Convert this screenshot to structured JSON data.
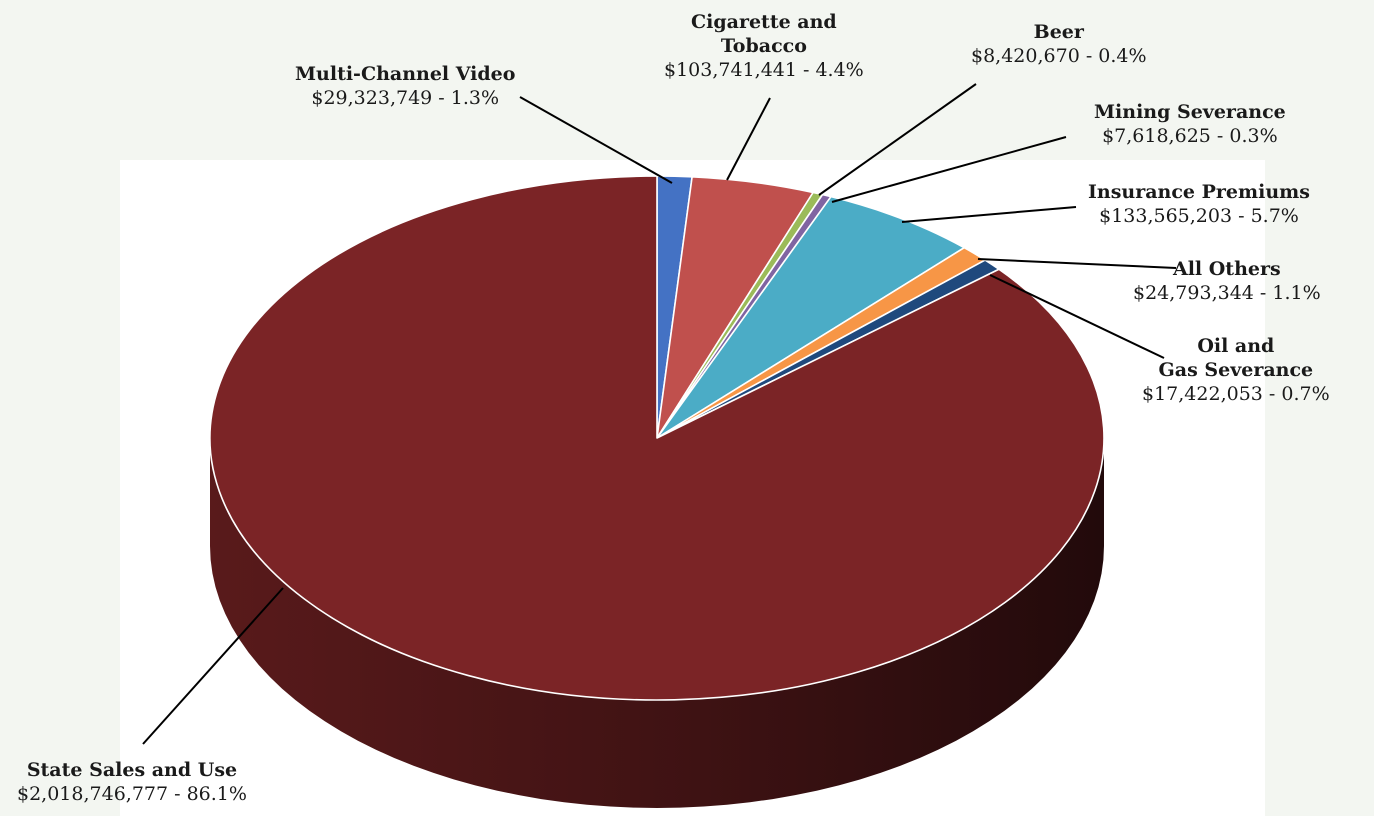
{
  "chart_data": {
    "type": "pie",
    "style": "3d",
    "background_color": "#f3f6f1",
    "start_slice": "Multi-Channel Video",
    "slices": [
      {
        "name": "Multi-Channel Video",
        "value": 29323749,
        "percent": 1.3,
        "value_label": "$29,323,749 - 1.3%",
        "color": "#4472c4"
      },
      {
        "name": "Cigarette and\nTobacco",
        "value": 103741441,
        "percent": 4.4,
        "value_label": "$103,741,441 - 4.4%",
        "color": "#c0504d"
      },
      {
        "name": "Beer",
        "value": 8420670,
        "percent": 0.4,
        "value_label": "$8,420,670 - 0.4%",
        "color": "#9bbb59"
      },
      {
        "name": "Mining Severance",
        "value": 7618625,
        "percent": 0.3,
        "value_label": "$7,618,625 - 0.3%",
        "color": "#8064a2"
      },
      {
        "name": "Insurance Premiums",
        "value": 133565203,
        "percent": 5.7,
        "value_label": "$133,565,203 - 5.7%",
        "color": "#4bacc6"
      },
      {
        "name": "All Others",
        "value": 24793344,
        "percent": 1.1,
        "value_label": "$24,793,344 - 1.1%",
        "color": "#f79646"
      },
      {
        "name": "Oil and\nGas Severance",
        "value": 17422053,
        "percent": 0.7,
        "value_label": "$17,422,053 - 0.7%",
        "color": "#1f497d"
      },
      {
        "name": "State Sales and Use",
        "value": 2018746777,
        "percent": 86.1,
        "value_label": "$2,018,746,777 - 86.1%",
        "color": "#7b2426"
      }
    ]
  }
}
